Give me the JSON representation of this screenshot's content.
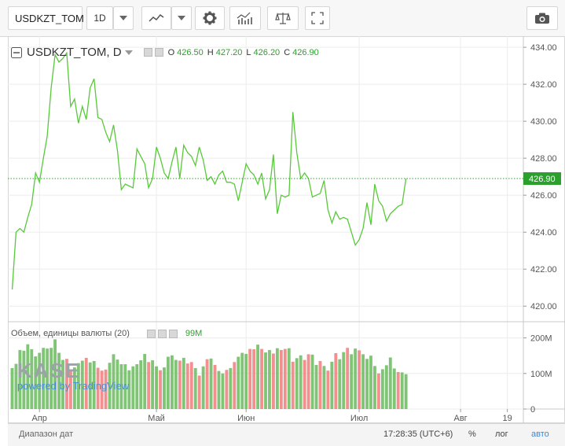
{
  "toolbar": {
    "symbol": "USDKZT_TOM",
    "interval": "1D"
  },
  "legend": {
    "symbol_label": "USDKZT_TOM, D",
    "open_label": "O",
    "open": "426.50",
    "high_label": "H",
    "high": "427.20",
    "low_label": "L",
    "low": "426.20",
    "close_label": "C",
    "close": "426.90"
  },
  "volume_legend": {
    "label": "Объем, единицы валюты (20)",
    "value": "99M"
  },
  "watermark": {
    "kase": "KASE",
    "powered": "powered by TradingView"
  },
  "status": {
    "range_label": "Диапазон дат",
    "time": "17:28:35 (UTC+6)",
    "percent": "%",
    "log": "лог",
    "auto": "авто"
  },
  "colors": {
    "line": "#58c93a",
    "vol_up": "#6aba5e",
    "vol_down": "#f07b7b",
    "last_price": "#2ca02c"
  },
  "chart_data": {
    "type": "line",
    "series": [
      {
        "values": [
          420.9,
          424.0,
          424.2,
          424.0,
          424.8,
          425.5,
          427.2,
          426.7,
          428.0,
          429.2,
          431.8,
          433.6,
          433.2,
          433.4,
          433.7,
          430.8,
          431.2,
          429.9,
          430.8,
          430.1,
          431.8,
          432.3,
          430.2,
          430.1,
          429.4,
          428.9,
          429.8,
          428.4,
          426.3,
          426.6,
          426.5,
          426.4,
          428.5,
          428.1,
          427.7,
          426.4,
          426.9,
          428.6,
          428.0,
          427.2,
          426.9,
          427.8,
          428.6,
          426.9,
          428.7,
          428.3,
          428.1,
          427.6,
          428.6,
          427.9,
          426.8,
          427.0,
          426.6,
          427.1,
          427.3,
          426.7,
          426.7,
          426.6,
          425.7,
          426.7,
          427.7,
          427.3,
          427.1,
          426.6,
          427.2,
          425.8,
          426.3,
          428.2,
          425.0,
          426.0,
          425.9,
          426.0,
          430.5,
          428.3,
          426.9,
          427.2,
          426.9,
          425.9,
          426.0,
          426.1,
          426.8,
          425.2,
          424.5,
          425.1,
          424.7,
          424.8,
          424.7,
          424.0,
          423.3,
          423.6,
          424.2,
          425.6,
          424.4,
          426.6,
          425.7,
          425.4,
          424.6,
          425.0,
          425.2,
          425.4,
          425.5,
          426.9
        ],
        "last": 426.9
      }
    ],
    "volume": {
      "values": [
        115,
        127,
        166,
        164,
        182,
        168,
        148,
        158,
        172,
        170,
        172,
        196,
        158,
        138,
        141,
        106,
        117,
        129,
        136,
        144,
        131,
        135,
        116,
        108,
        111,
        130,
        154,
        139,
        126,
        126,
        109,
        120,
        126,
        137,
        155,
        132,
        137,
        120,
        109,
        117,
        147,
        151,
        138,
        136,
        144,
        128,
        132,
        115,
        94,
        120,
        140,
        142,
        124,
        107,
        100,
        110,
        115,
        132,
        147,
        158,
        155,
        169,
        168,
        181,
        169,
        159,
        166,
        156,
        171,
        166,
        169,
        171,
        133,
        143,
        151,
        138,
        154,
        153,
        124,
        135,
        121,
        108,
        133,
        157,
        140,
        160,
        172,
        154,
        170,
        165,
        154,
        141,
        150,
        121,
        100,
        112,
        123,
        145,
        114,
        104,
        103,
        98
      ],
      "up": [
        1,
        1,
        1,
        1,
        1,
        1,
        1,
        1,
        1,
        1,
        1,
        1,
        1,
        1,
        0,
        0,
        1,
        1,
        1,
        0,
        1,
        1,
        0,
        0,
        0,
        1,
        1,
        1,
        1,
        1,
        1,
        1,
        1,
        1,
        1,
        0,
        1,
        1,
        0,
        1,
        1,
        1,
        1,
        0,
        1,
        0,
        0,
        1,
        0,
        1,
        0,
        1,
        0,
        1,
        1,
        0,
        1,
        0,
        1,
        1,
        1,
        0,
        0,
        1,
        0,
        1,
        1,
        0,
        1,
        0,
        0,
        1,
        0,
        1,
        1,
        0,
        0,
        1,
        1,
        0,
        1,
        0,
        1,
        0,
        1,
        1,
        0,
        1,
        1,
        0,
        1,
        1,
        1,
        1,
        0,
        1,
        1,
        1,
        1,
        0,
        1,
        1
      ],
      "ylim": [
        0,
        230
      ],
      "ticks": [
        "0",
        "100M",
        "200M"
      ],
      "tick_values": [
        0,
        100,
        200
      ]
    },
    "ylim": [
      419.2,
      434.6
    ],
    "yticks": [
      "420.00",
      "422.00",
      "424.00",
      "426.00",
      "428.00",
      "430.00",
      "432.00",
      "434.00"
    ],
    "ytick_values": [
      420,
      422,
      424,
      426,
      428,
      430,
      432,
      434
    ],
    "xticks": [
      "Апр",
      "Май",
      "Июн",
      "Июл",
      "Авг",
      "19"
    ],
    "xtick_index": [
      7,
      37,
      60,
      89,
      115,
      127
    ],
    "x_count": 131,
    "last_price_label": "426.90"
  }
}
